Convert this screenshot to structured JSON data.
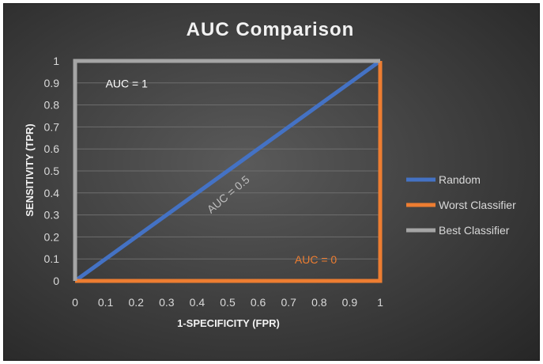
{
  "chart_data": {
    "type": "line",
    "title": "AUC Comparison",
    "xlabel": "1-SPECIFICITY (FPR)",
    "ylabel": "SENSITIVITY (TPR)",
    "xlim": [
      0,
      1
    ],
    "ylim": [
      0,
      1
    ],
    "xticks": [
      "0",
      "0.1",
      "0.2",
      "0.3",
      "0.4",
      "0.5",
      "0.6",
      "0.7",
      "0.8",
      "0.9",
      "1"
    ],
    "yticks": [
      "0",
      "0.1",
      "0.2",
      "0.3",
      "0.4",
      "0.5",
      "0.6",
      "0.7",
      "0.8",
      "0.9",
      "1"
    ],
    "grid": true,
    "legend_position": "right",
    "series": [
      {
        "name": "Random",
        "color": "#4472c4",
        "points": [
          [
            0,
            0
          ],
          [
            1,
            1
          ]
        ]
      },
      {
        "name": "Worst Classifier",
        "color": "#ed7d31",
        "points": [
          [
            0,
            0
          ],
          [
            1,
            0
          ],
          [
            1,
            1
          ]
        ]
      },
      {
        "name": "Best Classifier",
        "color": "#a5a5a5",
        "points": [
          [
            0,
            0
          ],
          [
            0,
            1
          ],
          [
            1,
            1
          ]
        ]
      }
    ],
    "annotations": [
      {
        "text": "AUC = 1",
        "x": 0.1,
        "y": 0.88,
        "color": "#ffffff",
        "rotation": 0
      },
      {
        "text": "AUC = 0.5",
        "x": 0.51,
        "y": 0.38,
        "color": "#bfbfbf",
        "rotation": -40
      },
      {
        "text": "AUC = 0",
        "x": 0.72,
        "y": 0.08,
        "color": "#ed7d31",
        "rotation": 0
      }
    ]
  }
}
